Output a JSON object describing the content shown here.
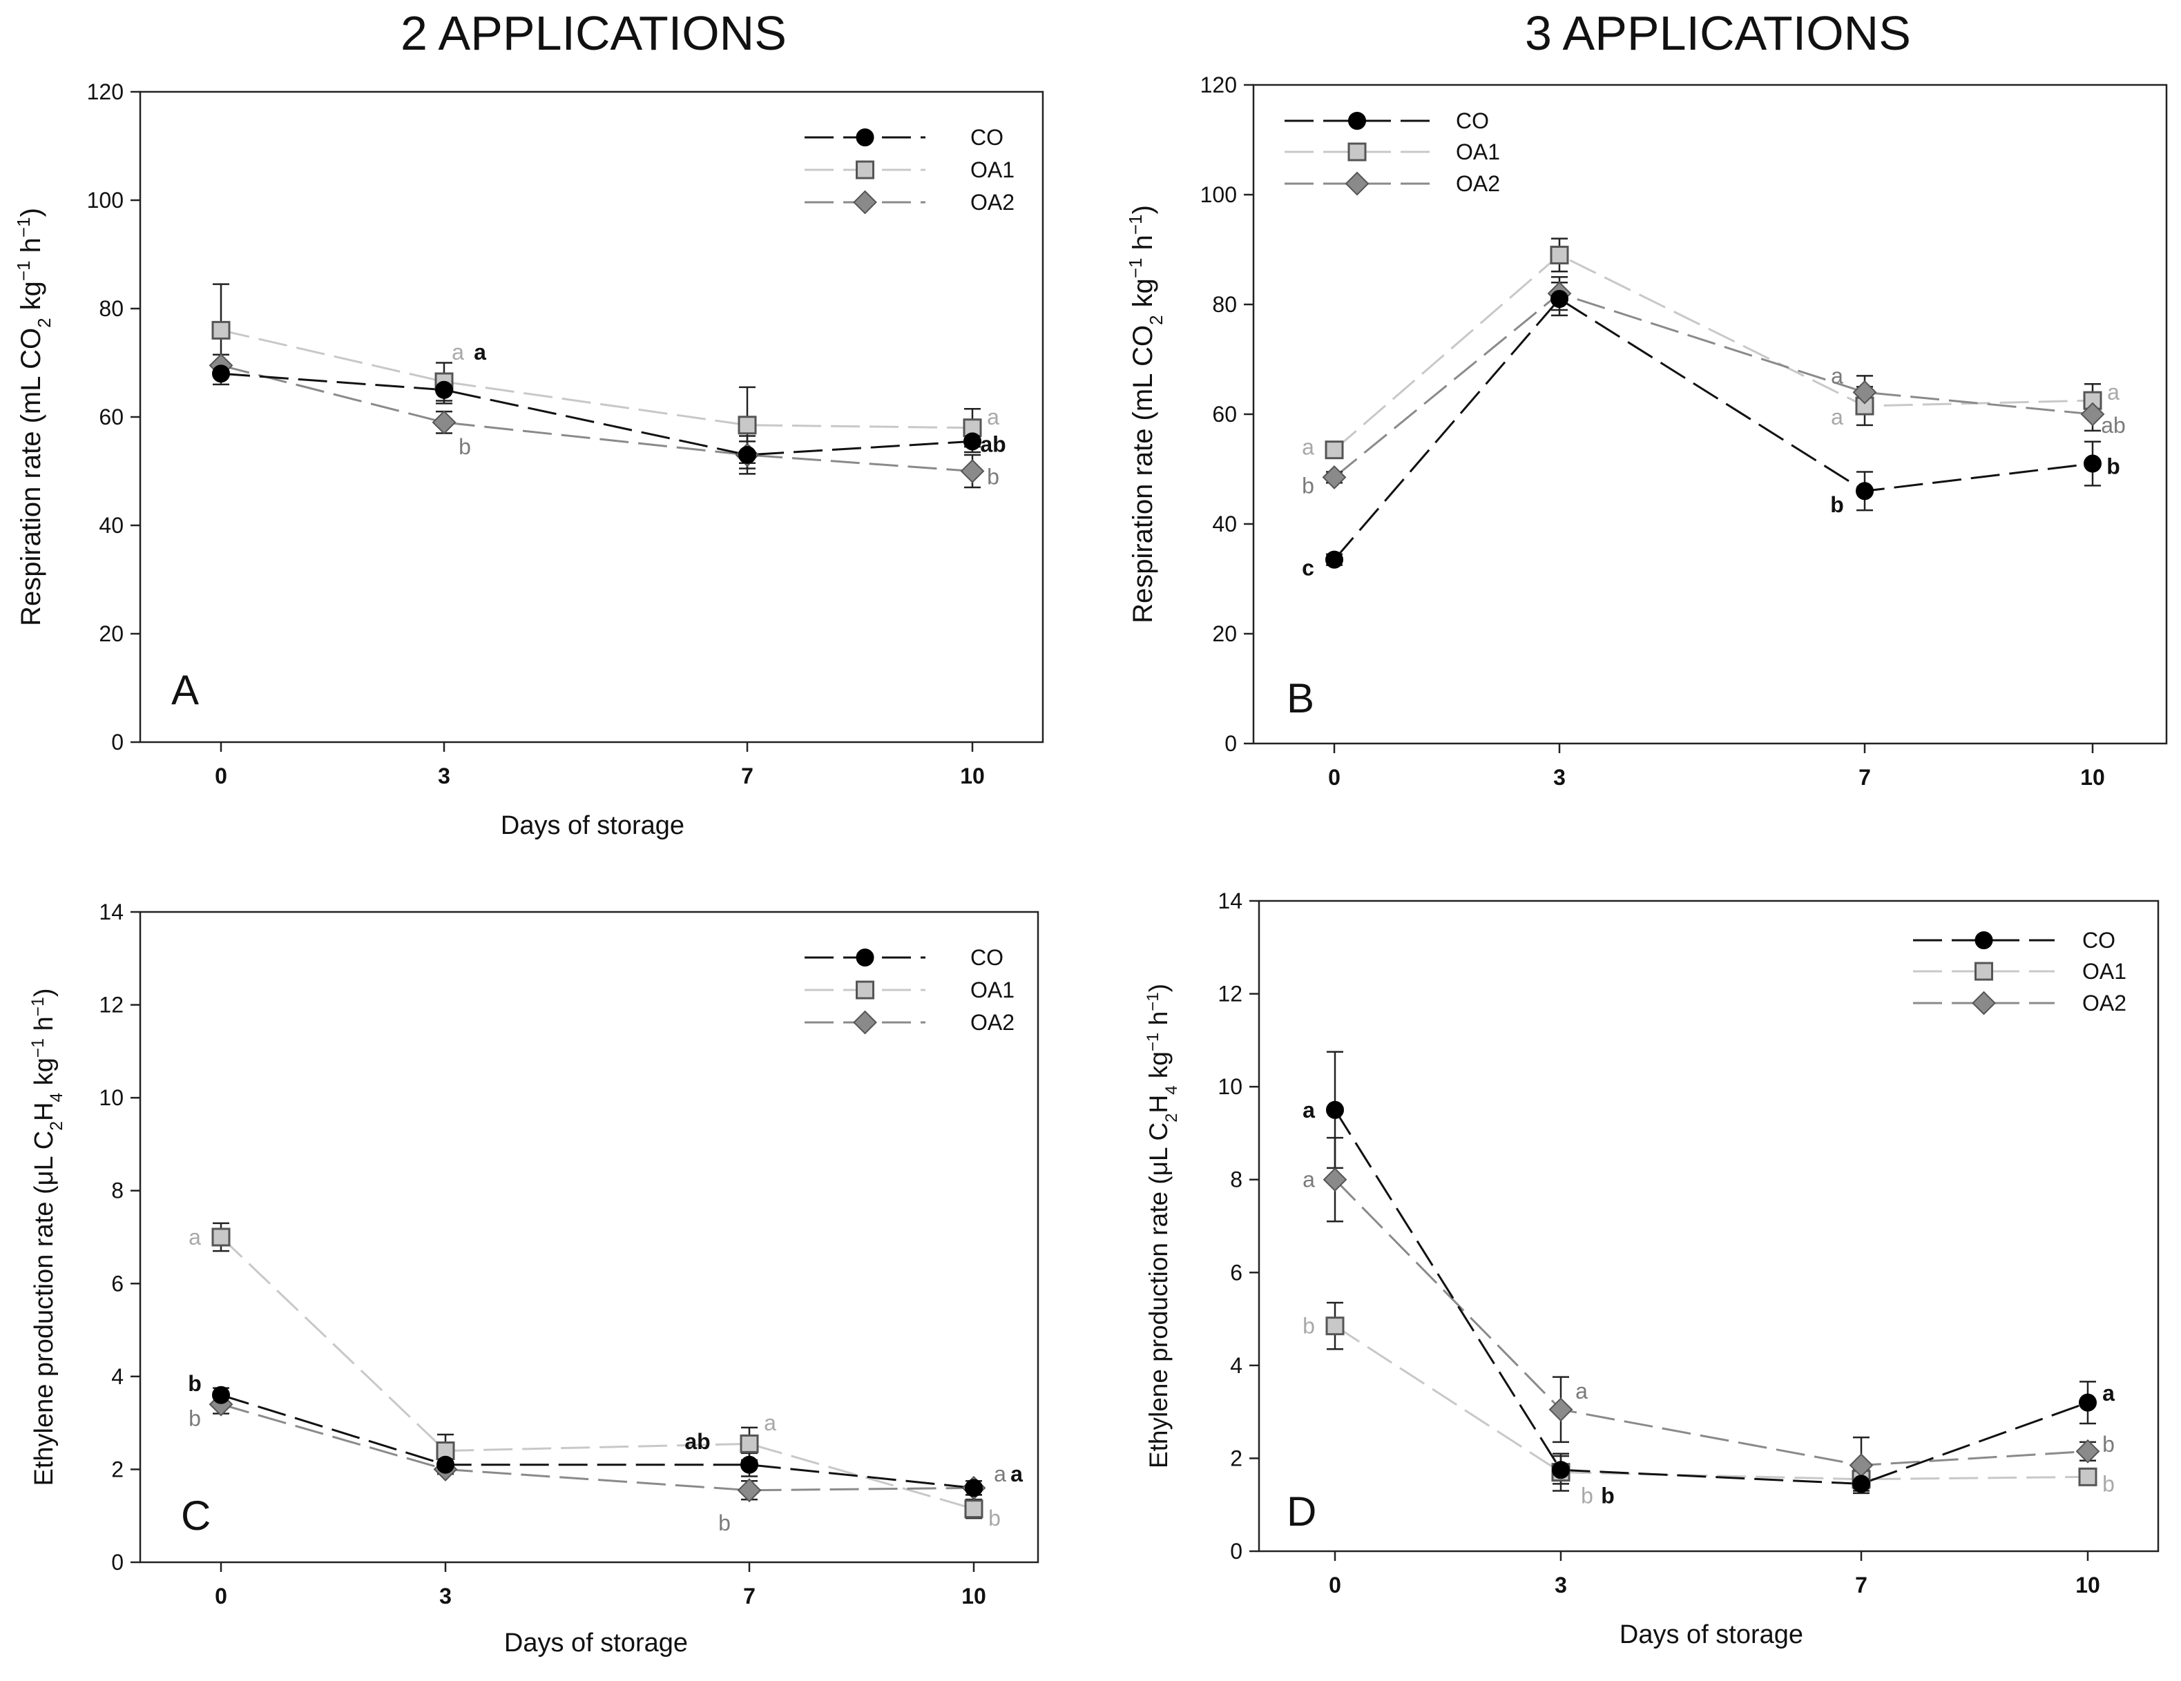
{
  "headers": {
    "left": "2 APPLICATIONS",
    "right": "3 APPLICATIONS"
  },
  "legend_labels": [
    "CO",
    "OA1",
    "OA2"
  ],
  "series_styles": {
    "CO": {
      "line": "#111111",
      "fill": "#000000",
      "stroke": "#000000",
      "marker": "circle"
    },
    "OA1": {
      "line": "#c8c8c8",
      "fill": "#c8c8c8",
      "stroke": "#555555",
      "marker": "square"
    },
    "OA2": {
      "line": "#8a8a8a",
      "fill": "#8a8a8a",
      "stroke": "#555555",
      "marker": "diamond"
    }
  },
  "letter_colors": {
    "CO": "#111111",
    "OA1": "#a8a8a8",
    "OA2": "#7a7a7a"
  },
  "chart_data": [
    {
      "panel": "A",
      "type": "line",
      "xlabel": "Days of storage",
      "ylabel": "Respiration rate (mL CO2 kg-1 h-1)",
      "ylabel_parts": [
        "Respiration rate (mL CO",
        "2",
        " kg",
        "−1",
        " h",
        "−1",
        ")"
      ],
      "x": [
        0,
        3,
        7,
        10
      ],
      "x_ticks": [
        "0",
        "3",
        "7",
        "10"
      ],
      "ylim": [
        0,
        120
      ],
      "y_ticks": [
        "0",
        "20",
        "40",
        "60",
        "80",
        "100",
        "120"
      ],
      "series": [
        {
          "name": "CO",
          "values": [
            68,
            65,
            53,
            55.5
          ],
          "errors": [
            2,
            2.5,
            3.5,
            2
          ]
        },
        {
          "name": "OA1",
          "values": [
            76,
            66.5,
            58.5,
            58
          ],
          "errors": [
            8.5,
            3.5,
            7,
            3.5
          ]
        },
        {
          "name": "OA2",
          "values": [
            69.5,
            59,
            53,
            50
          ],
          "errors": [
            2,
            2,
            2.5,
            3
          ]
        }
      ],
      "annotations": [
        {
          "text": "a",
          "series": "OA1",
          "x": 3,
          "y": 72
        },
        {
          "text": "a",
          "series": "CO",
          "x": 3,
          "y": 72
        },
        {
          "text": "b",
          "series": "OA2",
          "x": 3,
          "y": 54.5
        },
        {
          "text": "a",
          "series": "OA1",
          "x": 10,
          "y": 60
        },
        {
          "text": "ab",
          "series": "CO",
          "x": 10,
          "y": 55
        },
        {
          "text": "b",
          "series": "OA2",
          "x": 10,
          "y": 49
        }
      ]
    },
    {
      "panel": "B",
      "type": "line",
      "xlabel": "",
      "ylabel": "Respiration rate (mL CO2 kg-1 h-1)",
      "ylabel_parts": [
        "Respiration rate (mL CO",
        "2",
        " kg",
        "−1",
        " h",
        "−1",
        ")"
      ],
      "x": [
        0,
        3,
        7,
        10
      ],
      "x_ticks": [
        "0",
        "3",
        "7",
        "10"
      ],
      "ylim": [
        0,
        120
      ],
      "y_ticks": [
        "0",
        "20",
        "40",
        "60",
        "80",
        "100",
        "120"
      ],
      "series": [
        {
          "name": "CO",
          "values": [
            33.5,
            81,
            46,
            51
          ],
          "errors": [
            1,
            3,
            3.5,
            4
          ]
        },
        {
          "name": "OA1",
          "values": [
            53.5,
            89,
            61.5,
            62.5
          ],
          "errors": [
            1.5,
            3,
            3.5,
            3
          ]
        },
        {
          "name": "OA2",
          "values": [
            48.5,
            82,
            64,
            60
          ],
          "errors": [
            1,
            3,
            3,
            3
          ]
        }
      ],
      "annotations": [
        {
          "text": "a",
          "series": "OA1",
          "x": 0,
          "y": 54
        },
        {
          "text": "b",
          "series": "OA2",
          "x": 0,
          "y": 47
        },
        {
          "text": "c",
          "series": "CO",
          "x": 0,
          "y": 32
        },
        {
          "text": "a",
          "series": "OA2",
          "x": 7,
          "y": 67
        },
        {
          "text": "a",
          "series": "OA1",
          "x": 7,
          "y": 59.5
        },
        {
          "text": "b",
          "series": "CO",
          "x": 7,
          "y": 43.5
        },
        {
          "text": "a",
          "series": "OA1",
          "x": 10,
          "y": 64
        },
        {
          "text": "ab",
          "series": "OA2",
          "x": 10,
          "y": 58
        },
        {
          "text": "b",
          "series": "CO",
          "x": 10,
          "y": 50.5
        }
      ]
    },
    {
      "panel": "C",
      "type": "line",
      "xlabel": "Days of storage",
      "ylabel": "Ethylene production rate (μL C2H4 kg-1 h-1)",
      "ylabel_parts": [
        "Ethylene production rate (μL C",
        "2",
        "H",
        "4",
        " kg",
        "−1",
        " h",
        "−1",
        ")"
      ],
      "x": [
        0,
        3,
        7,
        10
      ],
      "x_ticks": [
        "0",
        "3",
        "7",
        "10"
      ],
      "ylim": [
        0,
        14
      ],
      "y_ticks": [
        "0",
        "2",
        "4",
        "6",
        "8",
        "10",
        "12",
        "14"
      ],
      "series": [
        {
          "name": "CO",
          "values": [
            3.6,
            2.1,
            2.1,
            1.6
          ],
          "errors": [
            0.15,
            0.15,
            0.25,
            0.15
          ]
        },
        {
          "name": "OA1",
          "values": [
            7.0,
            2.4,
            2.55,
            1.15
          ],
          "errors": [
            0.3,
            0.35,
            0.35,
            0.2
          ]
        },
        {
          "name": "OA2",
          "values": [
            3.4,
            2.0,
            1.55,
            1.6
          ],
          "errors": [
            0.2,
            0.1,
            0.2,
            0.15
          ]
        }
      ],
      "annotations": [
        {
          "text": "a",
          "series": "OA1",
          "x": 0,
          "y": 7.0
        },
        {
          "text": "b",
          "series": "CO",
          "x": 0,
          "y": 3.85
        },
        {
          "text": "b",
          "series": "OA2",
          "x": 0,
          "y": 3.1
        },
        {
          "text": "ab",
          "series": "CO",
          "x": 7,
          "y": 2.6
        },
        {
          "text": "a",
          "series": "OA1",
          "x": 7,
          "y": 3.0
        },
        {
          "text": "b",
          "series": "OA2",
          "x": 7,
          "y": 0.85
        },
        {
          "text": "a",
          "series": "OA2",
          "x": 10,
          "y": 1.9
        },
        {
          "text": "a",
          "series": "CO",
          "x": 10,
          "y": 1.9
        },
        {
          "text": "b",
          "series": "OA1",
          "x": 10,
          "y": 0.95
        }
      ]
    },
    {
      "panel": "D",
      "type": "line",
      "xlabel": "Days of storage",
      "ylabel": "Ethylene production rate (μL C2H4 kg-1 h-1)",
      "ylabel_parts": [
        "Ethylene production rate (μL C",
        "2",
        "H",
        "4",
        " kg",
        "−1",
        " h",
        "−1",
        ")"
      ],
      "x": [
        0,
        3,
        7,
        10
      ],
      "x_ticks": [
        "0",
        "3",
        "7",
        "10"
      ],
      "ylim": [
        0,
        14
      ],
      "y_ticks": [
        "0",
        "2",
        "4",
        "6",
        "8",
        "10",
        "12",
        "14"
      ],
      "series": [
        {
          "name": "CO",
          "values": [
            9.5,
            1.75,
            1.45,
            3.2
          ],
          "errors": [
            1.25,
            0.3,
            0.15,
            0.45
          ]
        },
        {
          "name": "OA1",
          "values": [
            4.85,
            1.7,
            1.55,
            1.6
          ],
          "errors": [
            0.5,
            0.4,
            0.2,
            0.1
          ]
        },
        {
          "name": "OA2",
          "values": [
            8.0,
            3.05,
            1.85,
            2.15
          ],
          "errors": [
            0.9,
            0.7,
            0.6,
            0.2
          ]
        }
      ],
      "annotations": [
        {
          "text": "a",
          "series": "CO",
          "x": 0,
          "y": 9.5
        },
        {
          "text": "a",
          "series": "OA2",
          "x": 0,
          "y": 8.0
        },
        {
          "text": "b",
          "series": "OA1",
          "x": 0,
          "y": 4.85
        },
        {
          "text": "a",
          "series": "OA2",
          "x": 3,
          "y": 3.45
        },
        {
          "text": "b",
          "series": "OA1",
          "x": 3,
          "y": 1.2
        },
        {
          "text": "b",
          "series": "CO",
          "x": 3,
          "y": 1.2
        },
        {
          "text": "a",
          "series": "CO",
          "x": 10,
          "y": 3.4
        },
        {
          "text": "b",
          "series": "OA2",
          "x": 10,
          "y": 2.3
        },
        {
          "text": "b",
          "series": "OA1",
          "x": 10,
          "y": 1.45
        }
      ]
    }
  ]
}
